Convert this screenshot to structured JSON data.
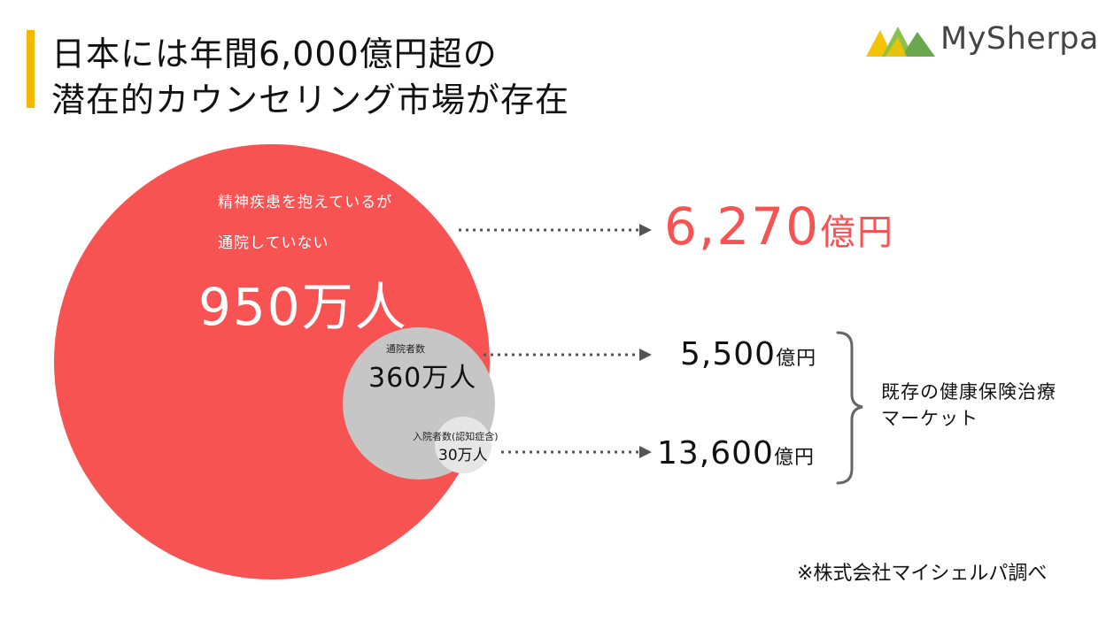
{
  "title": {
    "line1": "日本には年間6,000億円超の",
    "line2": "潜在的カウンセリング市場が存在"
  },
  "logo": {
    "text": "MySherpa",
    "icon": "mountain-logo-icon"
  },
  "colors": {
    "accent_bar": "#f5b800",
    "red": "#f75353",
    "gray": "#c6c6c6",
    "light_gray": "#e6e6e6"
  },
  "circles": {
    "outer": {
      "desc_line1": "精神疾患を抱えているが",
      "desc_line2": "通院していない",
      "value": "950万人"
    },
    "middle": {
      "desc": "通院者数",
      "value": "360万人"
    },
    "inner": {
      "desc": "入院者数(認知症含)",
      "value": "30万人"
    }
  },
  "markets": {
    "potential": {
      "number": "6,270",
      "unit": "億円"
    },
    "outpatient": {
      "number": "5,500",
      "unit": "億円"
    },
    "inpatient": {
      "number": "13,600",
      "unit": "億円"
    }
  },
  "bracket_label": {
    "line1": "既存の健康保険治療",
    "line2": "マーケット"
  },
  "footnote": "※株式会社マイシェルパ調べ"
}
